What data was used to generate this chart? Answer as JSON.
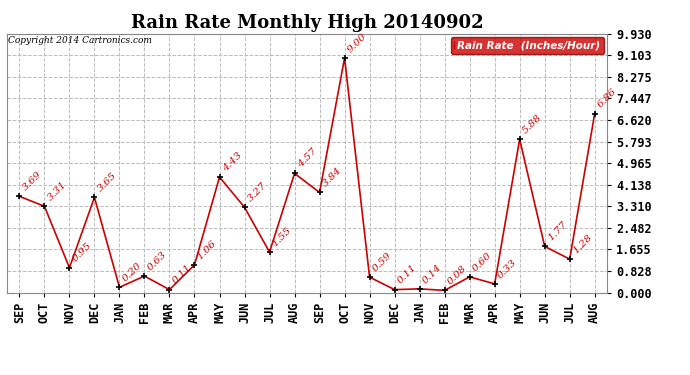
{
  "title": "Rain Rate Monthly High 20140902",
  "copyright": "Copyright 2014 Cartronics.com",
  "legend_label": "Rain Rate  (Inches/Hour)",
  "categories": [
    "SEP",
    "OCT",
    "NOV",
    "DEC",
    "JAN",
    "FEB",
    "MAR",
    "APR",
    "MAY",
    "JUN",
    "JUL",
    "AUG",
    "SEP",
    "OCT",
    "NOV",
    "DEC",
    "JAN",
    "FEB",
    "MAR",
    "APR",
    "MAY",
    "JUN",
    "JUL",
    "AUG"
  ],
  "values": [
    3.69,
    3.31,
    0.95,
    3.65,
    0.2,
    0.63,
    0.11,
    1.06,
    4.43,
    3.27,
    1.55,
    4.57,
    3.84,
    9.0,
    0.59,
    0.11,
    0.14,
    0.08,
    0.6,
    0.33,
    5.88,
    1.77,
    1.28,
    6.86
  ],
  "labels": [
    "3.69",
    "3.31",
    "0.95",
    "3.65",
    "0.20",
    "0.63",
    "0.11",
    "1.06",
    "4.43",
    "3.27",
    "1.55",
    "4.57",
    "3.84",
    "9.00",
    "0.59",
    "0.11",
    "0.14",
    "0.08",
    "0.60",
    "0.33",
    "5.88",
    "1.77",
    "1.28",
    "6.86"
  ],
  "ylim": [
    0,
    9.93
  ],
  "yticks": [
    0.0,
    0.828,
    1.655,
    2.482,
    3.31,
    4.138,
    4.965,
    5.793,
    6.62,
    7.447,
    8.275,
    9.103,
    9.93
  ],
  "line_color": "#cc0000",
  "marker_color": "#000000",
  "label_color": "#cc0000",
  "legend_bg": "#cc0000",
  "legend_text_color": "#ffffff",
  "bg_color": "#ffffff",
  "grid_color": "#bbbbbb",
  "title_fontsize": 13,
  "tick_fontsize": 8.5,
  "label_fontsize": 7.5
}
